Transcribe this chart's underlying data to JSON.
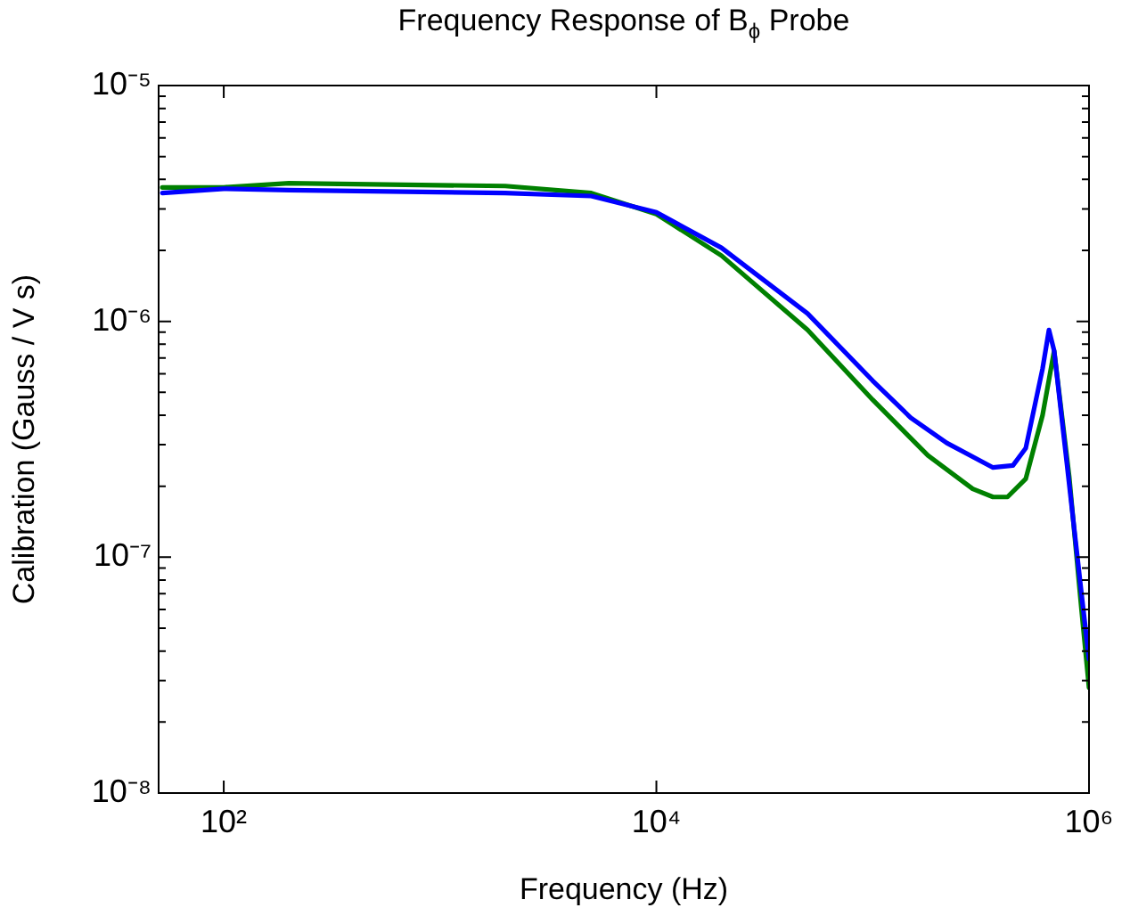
{
  "chart_data": {
    "type": "line",
    "title": "Frequency Response of B$_{ϕ}$ Probe",
    "xlabel": "Frequency (Hz)",
    "ylabel": "Calibration (Gauss / V s)",
    "log": "xy",
    "grid": false,
    "legend": false,
    "marker": "none",
    "line_style": "solid",
    "xlim": [
      50,
      1000000
    ],
    "xticks": [
      {
        "value": 100,
        "label": "10²"
      },
      {
        "value": 10000,
        "label": "10⁴"
      },
      {
        "value": 1000000,
        "label": "10⁶"
      }
    ],
    "ylim": [
      1e-08,
      1e-05
    ],
    "yticks": [
      {
        "value": 1e-08,
        "label": "10⁻⁸"
      },
      {
        "value": 2e-08,
        "label": null
      },
      {
        "value": 3e-08,
        "label": null
      },
      {
        "value": 4e-08,
        "label": null
      },
      {
        "value": 5e-08,
        "label": null
      },
      {
        "value": 6e-08,
        "label": null
      },
      {
        "value": 7e-08,
        "label": null
      },
      {
        "value": 8e-08,
        "label": null
      },
      {
        "value": 9e-08,
        "label": null
      },
      {
        "value": 1e-07,
        "label": "10⁻⁷"
      },
      {
        "value": 2e-07,
        "label": null
      },
      {
        "value": 3e-07,
        "label": null
      },
      {
        "value": 4e-07,
        "label": null
      },
      {
        "value": 5e-07,
        "label": null
      },
      {
        "value": 6e-07,
        "label": null
      },
      {
        "value": 7e-07,
        "label": null
      },
      {
        "value": 8e-07,
        "label": null
      },
      {
        "value": 9e-07,
        "label": null
      },
      {
        "value": 1e-06,
        "label": "10⁻⁶"
      },
      {
        "value": 2e-06,
        "label": null
      },
      {
        "value": 3e-06,
        "label": null
      },
      {
        "value": 4e-06,
        "label": null
      },
      {
        "value": 5e-06,
        "label": null
      },
      {
        "value": 6e-06,
        "label": null
      },
      {
        "value": 7e-06,
        "label": null
      },
      {
        "value": 8e-06,
        "label": null
      },
      {
        "value": 9e-06,
        "label": null
      },
      {
        "value": 1e-05,
        "label": "10⁻⁵"
      }
    ],
    "series": [
      {
        "color": "#0000ff",
        "x": [
          52,
          100,
          200,
          2000,
          5000,
          10000,
          20000,
          50000,
          100000,
          150000,
          220000,
          360000,
          445000,
          510000,
          610000,
          653000,
          690000,
          790000,
          930000,
          1000000
        ],
        "values": [
          3.5e-06,
          3.65e-06,
          3.6e-06,
          3.5e-06,
          3.4e-06,
          2.9e-06,
          2.05e-06,
          1.08e-06,
          5.6e-07,
          3.9e-07,
          3.05e-07,
          2.4e-07,
          2.45e-07,
          2.9e-07,
          6.3e-07,
          9.2e-07,
          7.5e-07,
          2.5e-07,
          6.6e-08,
          3.7e-08
        ]
      },
      {
        "color": "#008000",
        "x": [
          52,
          100,
          200,
          2000,
          5000,
          10000,
          20000,
          50000,
          100000,
          180000,
          290000,
          360000,
          420000,
          510000,
          610000,
          690000,
          810000,
          920000,
          1000000
        ],
        "values": [
          3.7e-06,
          3.7e-06,
          3.85e-06,
          3.75e-06,
          3.5e-06,
          2.85e-06,
          1.9e-06,
          9.2e-07,
          4.65e-07,
          2.7e-07,
          1.95e-07,
          1.8e-07,
          1.8e-07,
          2.15e-07,
          4e-07,
          7.5e-07,
          2.2e-07,
          6.2e-08,
          2.8e-08
        ]
      }
    ]
  }
}
